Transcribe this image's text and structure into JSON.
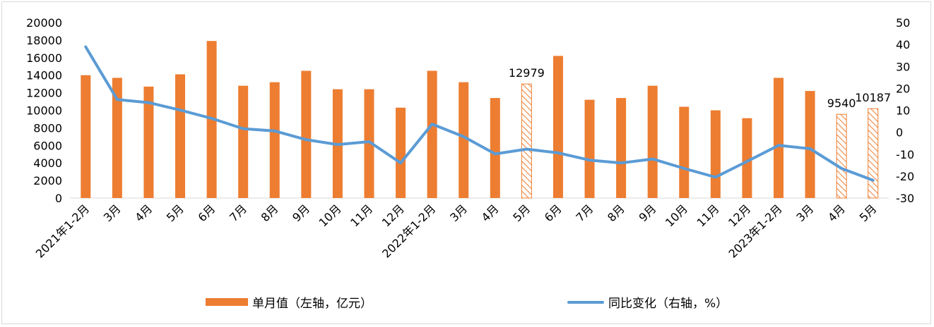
{
  "chart_data": {
    "type": "bar",
    "categories": [
      "2021年1-2月",
      "3月",
      "4月",
      "5月",
      "6月",
      "7月",
      "8月",
      "9月",
      "10月",
      "11月",
      "12月",
      "2022年1-2月",
      "3月",
      "4月",
      "5月",
      "6月",
      "7月",
      "8月",
      "9月",
      "10月",
      "11月",
      "12月",
      "2023年1-2月",
      "3月",
      "4月",
      "5月"
    ],
    "series": [
      {
        "name": "单月值（左轴，亿元）",
        "type": "bar",
        "axis": "left",
        "color": "#ed7d31",
        "values": [
          14000,
          13700,
          12700,
          14100,
          17900,
          12800,
          13200,
          14500,
          12400,
          12400,
          10300,
          14500,
          13200,
          11400,
          13000,
          16200,
          11200,
          11400,
          12800,
          10400,
          10000,
          9100,
          13700,
          12200,
          9540,
          10187
        ],
        "hatched": [
          false,
          false,
          false,
          false,
          false,
          false,
          false,
          false,
          false,
          false,
          false,
          false,
          false,
          false,
          true,
          false,
          false,
          false,
          false,
          false,
          false,
          false,
          false,
          false,
          true,
          true
        ]
      },
      {
        "name": "同比变化（右轴，%）",
        "type": "line",
        "axis": "right",
        "color": "#5b9bd5",
        "values": [
          38.9,
          14.9,
          13.5,
          10.1,
          6.3,
          1.6,
          0.6,
          -3.4,
          -5.6,
          -4.3,
          -14.0,
          3.7,
          -2.0,
          -9.9,
          -7.7,
          -9.4,
          -12.7,
          -14.0,
          -12.2,
          -16.5,
          -20.5,
          -13.3,
          -6.0,
          -7.5,
          -16.5,
          -21.9
        ]
      }
    ],
    "data_labels": [
      {
        "index": 14,
        "text": "12979"
      },
      {
        "index": 24,
        "text": "9540"
      },
      {
        "index": 25,
        "text": "10187"
      }
    ],
    "y_left": {
      "min": 0,
      "max": 20000,
      "ticks": [
        "0",
        "2000",
        "4000",
        "6000",
        "8000",
        "10000",
        "12000",
        "14000",
        "16000",
        "18000",
        "20000"
      ]
    },
    "y_right": {
      "min": -30,
      "max": 50,
      "ticks": [
        "-30",
        "-20",
        "-10",
        "0",
        "10",
        "20",
        "30",
        "40",
        "50"
      ]
    },
    "grid": false,
    "legend_position": "bottom"
  }
}
